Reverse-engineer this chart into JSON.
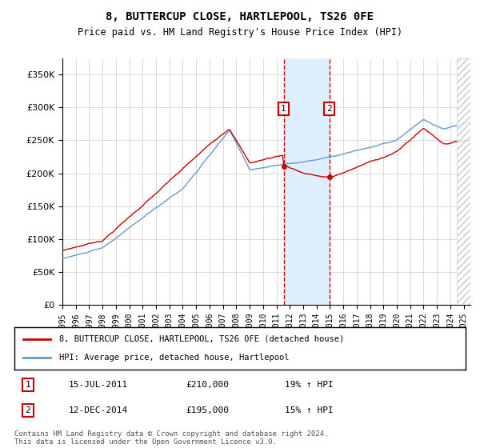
{
  "title": "8, BUTTERCUP CLOSE, HARTLEPOOL, TS26 0FE",
  "subtitle": "Price paid vs. HM Land Registry's House Price Index (HPI)",
  "yticks": [
    0,
    50000,
    100000,
    150000,
    200000,
    250000,
    300000,
    350000
  ],
  "ylim": [
    0,
    375000
  ],
  "xlim_start": 1995.0,
  "xlim_end": 2025.5,
  "property_color": "#cc0000",
  "hpi_color": "#6699cc",
  "shaded_region_color": "#ddeeff",
  "annotation_box_color": "#cc0000",
  "legend_property": "8, BUTTERCUP CLOSE, HARTLEPOOL, TS26 0FE (detached house)",
  "legend_hpi": "HPI: Average price, detached house, Hartlepool",
  "transaction1_date": "15-JUL-2011",
  "transaction1_price": "£210,000",
  "transaction1_hpi": "19% ↑ HPI",
  "transaction1_year": 2011.54,
  "transaction1_price_val": 210000,
  "transaction2_date": "12-DEC-2014",
  "transaction2_price": "£195,000",
  "transaction2_hpi": "15% ↑ HPI",
  "transaction2_year": 2014.95,
  "transaction2_price_val": 195000,
  "footer": "Contains HM Land Registry data © Crown copyright and database right 2024.\nThis data is licensed under the Open Government Licence v3.0.",
  "hatch_region_start": 2024.5,
  "hatch_region_end": 2025.5
}
